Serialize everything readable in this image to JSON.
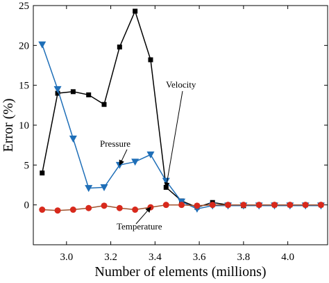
{
  "chart_data": {
    "type": "line",
    "title": "",
    "xlabel": "Number of elements (millions)",
    "ylabel": "Error (%)",
    "xlim": [
      2.85,
      4.18
    ],
    "ylim": [
      -5,
      25
    ],
    "xticks": [
      3.0,
      3.2,
      3.4,
      3.6,
      3.8,
      4.0
    ],
    "xtick_labels": [
      "3.0",
      "3.2",
      "3.4",
      "3.6",
      "3.8",
      "4.0"
    ],
    "yticks": [
      0,
      5,
      10,
      15,
      20,
      25
    ],
    "ytick_labels": [
      "0",
      "5",
      "10",
      "15",
      "20",
      "25"
    ],
    "grid": false,
    "legend": "none",
    "series": [
      {
        "name": "Velocity",
        "color": "#000000",
        "marker": "square",
        "x": [
          2.89,
          2.96,
          3.03,
          3.1,
          3.17,
          3.24,
          3.31,
          3.38,
          3.45,
          3.52,
          3.59,
          3.66,
          3.73,
          3.8,
          3.87,
          3.94,
          4.01,
          4.08,
          4.15
        ],
        "y": [
          4.0,
          14.0,
          14.2,
          13.8,
          12.6,
          19.8,
          24.3,
          18.2,
          2.2,
          0.5,
          -0.3,
          0.3,
          0.0,
          -0.1,
          0.0,
          0.0,
          0.0,
          0.0,
          0.0
        ]
      },
      {
        "name": "Pressure",
        "color": "#1f6fb8",
        "marker": "triangle-down",
        "x": [
          2.89,
          2.96,
          3.03,
          3.1,
          3.17,
          3.24,
          3.31,
          3.38,
          3.45,
          3.52,
          3.59,
          3.66,
          3.73,
          3.8,
          3.87,
          3.94,
          4.01,
          4.08,
          4.15
        ],
        "y": [
          20.1,
          14.5,
          8.3,
          2.1,
          2.2,
          5.0,
          5.4,
          6.3,
          3.0,
          0.4,
          -0.5,
          -0.1,
          -0.1,
          -0.1,
          -0.1,
          -0.1,
          -0.1,
          -0.1,
          -0.1
        ]
      },
      {
        "name": "Temperature",
        "color": "#d8291c",
        "line_color": "#a0522d",
        "marker": "circle",
        "x": [
          2.89,
          2.96,
          3.03,
          3.1,
          3.17,
          3.24,
          3.31,
          3.38,
          3.45,
          3.52,
          3.59,
          3.66,
          3.73,
          3.8,
          3.87,
          3.94,
          4.01,
          4.08,
          4.15
        ],
        "y": [
          -0.6,
          -0.7,
          -0.6,
          -0.4,
          -0.1,
          -0.4,
          -0.6,
          -0.3,
          0.0,
          0.0,
          -0.1,
          0.0,
          0.0,
          0.0,
          0.0,
          0.0,
          0.0,
          0.0,
          0.0
        ]
      }
    ],
    "annotations": [
      {
        "text": "Velocity",
        "target_series": 0,
        "target_index": 8
      },
      {
        "text": "Pressure",
        "target_series": 1,
        "target_index": 5
      },
      {
        "text": "Temperature",
        "target_series": 2,
        "target_index": 7
      }
    ]
  }
}
